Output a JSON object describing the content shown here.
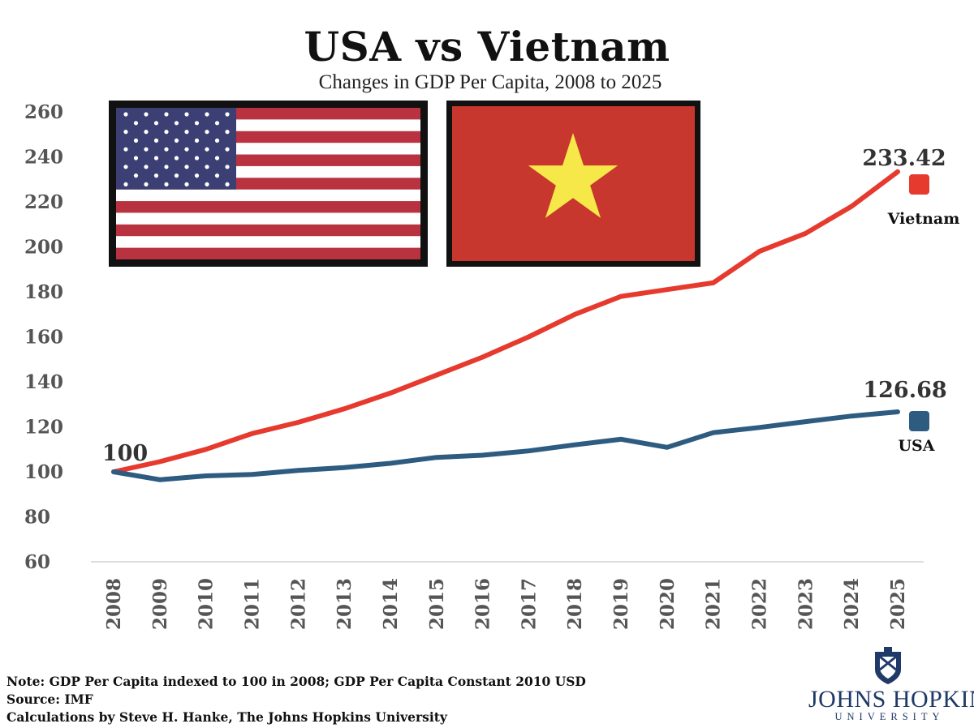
{
  "title": "USA vs Vietnam",
  "subtitle": "Changes in GDP Per Capita, 2008 to 2025",
  "colors": {
    "vietnam": "#e63a2e",
    "usa": "#2e5b80",
    "flag_red": "#c8372d",
    "flag_star": "#f7e84a",
    "axis": "#dddddd"
  },
  "chart_data": {
    "type": "line",
    "x": [
      "2008",
      "2009",
      "2010",
      "2011",
      "2012",
      "2013",
      "2014",
      "2015",
      "2016",
      "2017",
      "2018",
      "2019",
      "2020",
      "2021",
      "2022",
      "2023",
      "2024",
      "2025"
    ],
    "series": [
      {
        "name": "Vietnam",
        "values": [
          100,
          104.5,
          110,
          117,
          122,
          128,
          135,
          143,
          151,
          160,
          170,
          178,
          181,
          184,
          198,
          206,
          218,
          233.42
        ]
      },
      {
        "name": "USA",
        "values": [
          100,
          96.5,
          98.2,
          98.8,
          100.6,
          101.9,
          103.8,
          106.4,
          107.4,
          109.3,
          112,
          114.5,
          110.9,
          117.4,
          119.7,
          122.3,
          124.8,
          126.68
        ]
      }
    ],
    "yticks": [
      60,
      80,
      100,
      120,
      140,
      160,
      180,
      200,
      220,
      240,
      260
    ],
    "ylim": [
      60,
      260
    ],
    "grid": false,
    "legend": "right",
    "annotations": {
      "start": "100",
      "vietnam_end": "233.42",
      "usa_end": "126.68"
    },
    "xlabel": "",
    "ylabel": ""
  },
  "notes": {
    "line1": "Note: GDP Per Capita indexed to 100 in 2008; GDP Per Capita Constant 2010 USD",
    "line2": "Source: IMF",
    "line3": "Calculations by Steve H. Hanke, The Johns Hopkins University"
  },
  "logo": {
    "name": "JOHNS HOPKINS",
    "sub": "UNIVERSITY"
  },
  "icons": [
    "usa-flag-icon",
    "vietnam-flag-icon",
    "jhu-shield-icon"
  ]
}
